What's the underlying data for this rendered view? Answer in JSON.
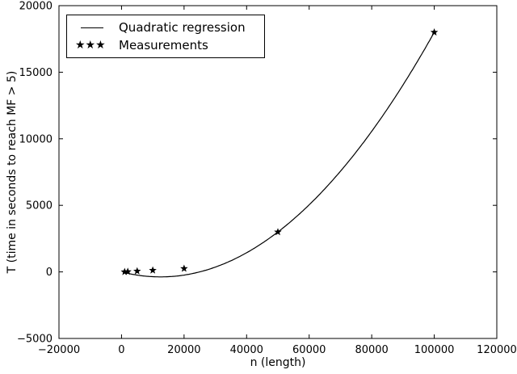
{
  "figure": {
    "background_color": "#ffffff",
    "foreground_color": "#000000"
  },
  "chart_data": {
    "type": "scatter",
    "title": "",
    "xlabel": "n (length)",
    "ylabel": "T (time in seconds to reach MF > 5)",
    "xlim": [
      -20000,
      120000
    ],
    "ylim": [
      -5000,
      20000
    ],
    "xticks": [
      -20000,
      0,
      20000,
      40000,
      60000,
      80000,
      100000,
      120000
    ],
    "yticks": [
      -5000,
      0,
      5000,
      10000,
      15000,
      20000
    ],
    "grid": false,
    "tick_direction": "in",
    "legend": {
      "position": "upper-left",
      "marker_sample": "★★★"
    },
    "series": [
      {
        "name": "Quadratic regression",
        "kind": "line",
        "color": "#000000",
        "model": "quadratic",
        "coefficients": {
          "a": 2.4e-06,
          "b": -0.06,
          "c": 0
        },
        "x_start": 500,
        "x_end": 100000
      },
      {
        "name": "Measurements",
        "kind": "scatter",
        "marker": "star",
        "color": "#000000",
        "points": [
          [
            1000,
            5
          ],
          [
            2000,
            20
          ],
          [
            5000,
            60
          ],
          [
            10000,
            120
          ],
          [
            20000,
            250
          ],
          [
            50000,
            3000
          ],
          [
            100000,
            18000
          ]
        ]
      }
    ]
  }
}
